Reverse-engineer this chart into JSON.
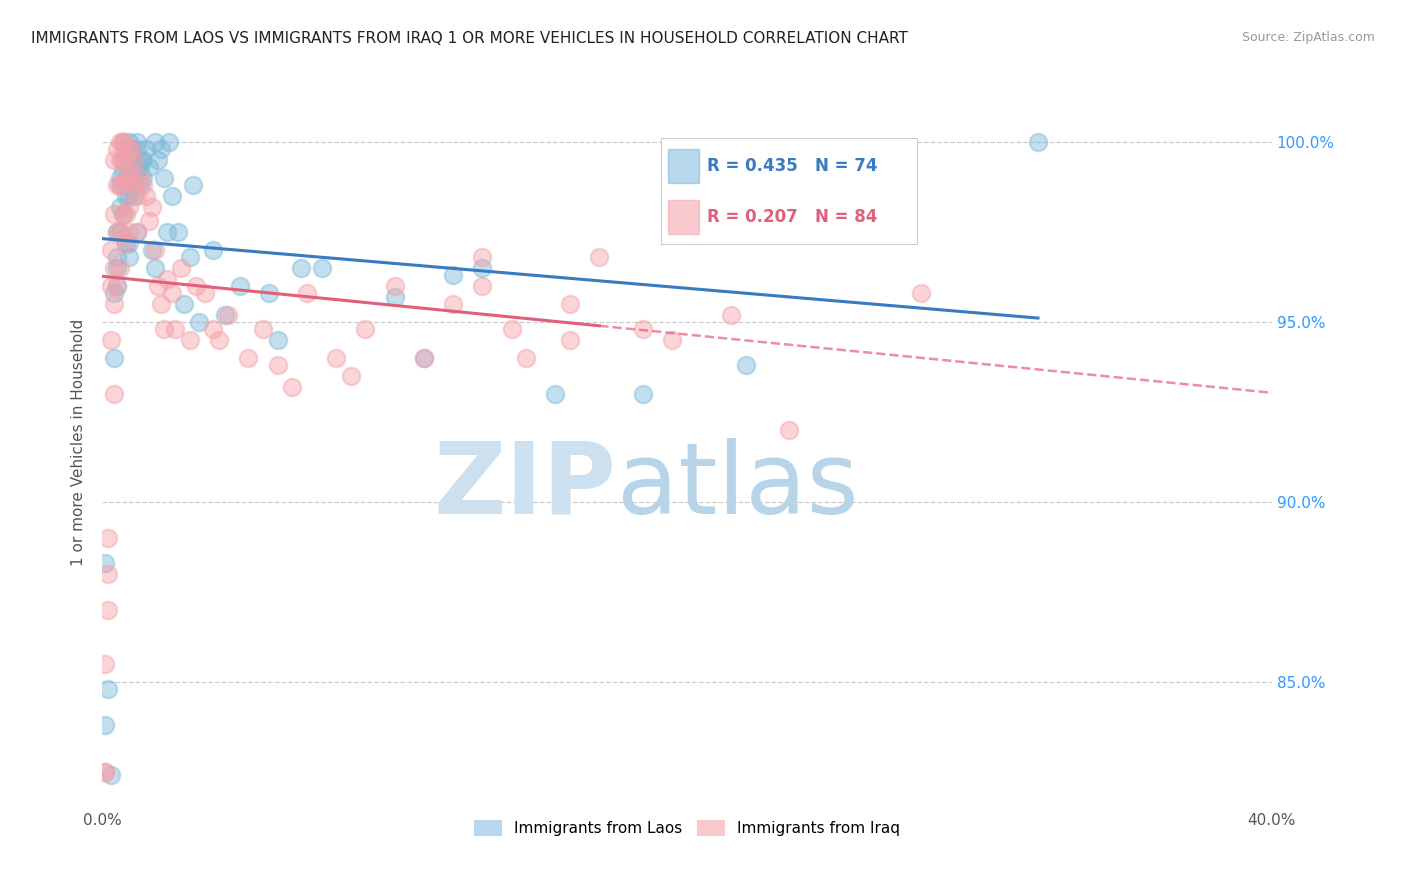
{
  "title": "IMMIGRANTS FROM LAOS VS IMMIGRANTS FROM IRAQ 1 OR MORE VEHICLES IN HOUSEHOLD CORRELATION CHART",
  "source": "Source: ZipAtlas.com",
  "ylabel": "1 or more Vehicles in Household",
  "ytick_labels": [
    "100.0%",
    "95.0%",
    "90.0%",
    "85.0%"
  ],
  "ytick_values": [
    1.0,
    0.95,
    0.9,
    0.85
  ],
  "xmin": 0.0,
  "xmax": 0.4,
  "ymin": 0.815,
  "ymax": 1.018,
  "r_laos": 0.435,
  "n_laos": 74,
  "r_iraq": 0.207,
  "n_iraq": 84,
  "legend_laos": "Immigrants from Laos",
  "legend_iraq": "Immigrants from Iraq",
  "blue_color": "#7ab8d9",
  "pink_color": "#f4a0a8",
  "blue_line_color": "#3a7abf",
  "pink_line_color": "#e0607a",
  "watermark_zip": "ZIP",
  "watermark_atlas": "atlas",
  "watermark_color": "#cce0f0",
  "scatter_laos": [
    [
      0.001,
      0.838
    ],
    [
      0.002,
      0.848
    ],
    [
      0.003,
      0.824
    ],
    [
      0.004,
      0.958
    ],
    [
      0.004,
      0.94
    ],
    [
      0.005,
      0.968
    ],
    [
      0.005,
      0.975
    ],
    [
      0.005,
      0.965
    ],
    [
      0.005,
      0.96
    ],
    [
      0.006,
      0.99
    ],
    [
      0.006,
      0.988
    ],
    [
      0.006,
      0.982
    ],
    [
      0.006,
      0.975
    ],
    [
      0.007,
      0.995
    ],
    [
      0.007,
      0.992
    ],
    [
      0.007,
      0.98
    ],
    [
      0.007,
      1.0
    ],
    [
      0.008,
      0.998
    ],
    [
      0.008,
      0.99
    ],
    [
      0.008,
      0.985
    ],
    [
      0.008,
      0.972
    ],
    [
      0.009,
      0.995
    ],
    [
      0.009,
      0.985
    ],
    [
      0.009,
      0.972
    ],
    [
      0.009,
      0.968
    ],
    [
      0.009,
      1.0
    ],
    [
      0.01,
      0.998
    ],
    [
      0.01,
      0.996
    ],
    [
      0.01,
      0.992
    ],
    [
      0.01,
      0.998
    ],
    [
      0.011,
      0.994
    ],
    [
      0.011,
      0.99
    ],
    [
      0.011,
      0.985
    ],
    [
      0.012,
      0.998
    ],
    [
      0.012,
      0.992
    ],
    [
      0.012,
      0.975
    ],
    [
      0.012,
      1.0
    ],
    [
      0.013,
      0.995
    ],
    [
      0.013,
      0.993
    ],
    [
      0.013,
      0.988
    ],
    [
      0.014,
      0.995
    ],
    [
      0.014,
      0.99
    ],
    [
      0.015,
      0.998
    ],
    [
      0.016,
      0.993
    ],
    [
      0.017,
      0.97
    ],
    [
      0.018,
      0.965
    ],
    [
      0.018,
      1.0
    ],
    [
      0.019,
      0.995
    ],
    [
      0.02,
      0.998
    ],
    [
      0.021,
      0.99
    ],
    [
      0.022,
      0.975
    ],
    [
      0.023,
      1.0
    ],
    [
      0.024,
      0.985
    ],
    [
      0.026,
      0.975
    ],
    [
      0.028,
      0.955
    ],
    [
      0.03,
      0.968
    ],
    [
      0.031,
      0.988
    ],
    [
      0.033,
      0.95
    ],
    [
      0.038,
      0.97
    ],
    [
      0.042,
      0.952
    ],
    [
      0.047,
      0.96
    ],
    [
      0.057,
      0.958
    ],
    [
      0.06,
      0.945
    ],
    [
      0.068,
      0.965
    ],
    [
      0.075,
      0.965
    ],
    [
      0.1,
      0.957
    ],
    [
      0.11,
      0.94
    ],
    [
      0.12,
      0.963
    ],
    [
      0.13,
      0.965
    ],
    [
      0.155,
      0.93
    ],
    [
      0.185,
      0.93
    ],
    [
      0.22,
      0.938
    ],
    [
      0.32,
      1.0
    ],
    [
      0.001,
      0.883
    ]
  ],
  "scatter_iraq": [
    [
      0.001,
      0.825
    ],
    [
      0.001,
      0.855
    ],
    [
      0.002,
      0.88
    ],
    [
      0.002,
      0.89
    ],
    [
      0.002,
      0.87
    ],
    [
      0.003,
      0.97
    ],
    [
      0.003,
      0.96
    ],
    [
      0.003,
      0.945
    ],
    [
      0.004,
      0.995
    ],
    [
      0.004,
      0.98
    ],
    [
      0.004,
      0.965
    ],
    [
      0.004,
      0.955
    ],
    [
      0.004,
      0.93
    ],
    [
      0.005,
      0.998
    ],
    [
      0.005,
      0.988
    ],
    [
      0.005,
      0.975
    ],
    [
      0.005,
      0.96
    ],
    [
      0.006,
      1.0
    ],
    [
      0.006,
      0.995
    ],
    [
      0.006,
      0.988
    ],
    [
      0.006,
      0.975
    ],
    [
      0.006,
      0.965
    ],
    [
      0.007,
      1.0
    ],
    [
      0.007,
      0.995
    ],
    [
      0.007,
      0.988
    ],
    [
      0.007,
      0.98
    ],
    [
      0.007,
      1.0
    ],
    [
      0.008,
      0.995
    ],
    [
      0.008,
      0.99
    ],
    [
      0.008,
      0.98
    ],
    [
      0.008,
      0.972
    ],
    [
      0.009,
      0.998
    ],
    [
      0.009,
      0.99
    ],
    [
      0.009,
      0.982
    ],
    [
      0.009,
      0.975
    ],
    [
      0.01,
      0.998
    ],
    [
      0.01,
      0.992
    ],
    [
      0.011,
      0.995
    ],
    [
      0.011,
      0.988
    ],
    [
      0.012,
      0.985
    ],
    [
      0.012,
      0.975
    ],
    [
      0.013,
      0.99
    ],
    [
      0.014,
      0.988
    ],
    [
      0.015,
      0.985
    ],
    [
      0.016,
      0.978
    ],
    [
      0.017,
      0.982
    ],
    [
      0.018,
      0.97
    ],
    [
      0.019,
      0.96
    ],
    [
      0.02,
      0.955
    ],
    [
      0.021,
      0.948
    ],
    [
      0.022,
      0.962
    ],
    [
      0.024,
      0.958
    ],
    [
      0.025,
      0.948
    ],
    [
      0.027,
      0.965
    ],
    [
      0.03,
      0.945
    ],
    [
      0.032,
      0.96
    ],
    [
      0.035,
      0.958
    ],
    [
      0.038,
      0.948
    ],
    [
      0.04,
      0.945
    ],
    [
      0.043,
      0.952
    ],
    [
      0.05,
      0.94
    ],
    [
      0.055,
      0.948
    ],
    [
      0.06,
      0.938
    ],
    [
      0.065,
      0.932
    ],
    [
      0.07,
      0.958
    ],
    [
      0.08,
      0.94
    ],
    [
      0.085,
      0.935
    ],
    [
      0.09,
      0.948
    ],
    [
      0.1,
      0.96
    ],
    [
      0.11,
      0.94
    ],
    [
      0.12,
      0.955
    ],
    [
      0.13,
      0.968
    ],
    [
      0.14,
      0.948
    ],
    [
      0.16,
      0.945
    ],
    [
      0.001,
      0.825
    ],
    [
      0.13,
      0.96
    ],
    [
      0.145,
      0.94
    ],
    [
      0.16,
      0.955
    ],
    [
      0.17,
      0.968
    ],
    [
      0.185,
      0.948
    ],
    [
      0.195,
      0.945
    ],
    [
      0.215,
      0.952
    ],
    [
      0.235,
      0.92
    ],
    [
      0.28,
      0.958
    ]
  ],
  "laos_line_xmax": 0.32,
  "iraq_line_solid_xmax": 0.17,
  "iraq_line_dash_xmax": 0.4
}
